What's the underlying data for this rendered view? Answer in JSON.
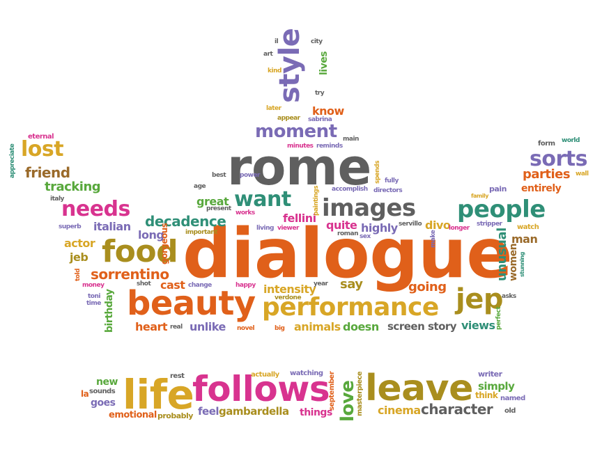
{
  "palette": {
    "orange": "#e0601a",
    "purple": "#7a6bb5",
    "magenta": "#d8338f",
    "green": "#58a83c",
    "olive": "#a98e1e",
    "gold": "#d8a626",
    "teal": "#2f8f77",
    "gray": "#5f5f5f",
    "pink": "#e0509a",
    "lightgray": "#8a8a8a",
    "brown": "#9a6a2a",
    "blue": "#3f78b5"
  },
  "words": [
    {
      "text": "dialogue",
      "color": "orange"
    },
    {
      "text": "rome",
      "color": "gray"
    },
    {
      "text": "beauty",
      "color": "orange"
    },
    {
      "text": "performance",
      "color": "gold"
    },
    {
      "text": "food",
      "color": "olive"
    },
    {
      "text": "images",
      "color": "gray"
    },
    {
      "text": "people",
      "color": "teal"
    },
    {
      "text": "style",
      "color": "purple"
    },
    {
      "text": "moment",
      "color": "purple"
    },
    {
      "text": "want",
      "color": "teal"
    },
    {
      "text": "needs",
      "color": "magenta"
    },
    {
      "text": "lost",
      "color": "gold"
    },
    {
      "text": "sorts",
      "color": "purple"
    },
    {
      "text": "jep",
      "color": "olive"
    },
    {
      "text": "decadence",
      "color": "teal"
    },
    {
      "text": "sorrentino",
      "color": "orange"
    },
    {
      "text": "friend",
      "color": "brown"
    },
    {
      "text": "tracking",
      "color": "green"
    },
    {
      "text": "parties",
      "color": "orange"
    },
    {
      "text": "unusual",
      "color": "teal"
    },
    {
      "text": "going",
      "color": "orange"
    },
    {
      "text": "intensity",
      "color": "gold"
    },
    {
      "text": "quite",
      "color": "magenta"
    },
    {
      "text": "highly",
      "color": "purple"
    },
    {
      "text": "fellini",
      "color": "magenta"
    },
    {
      "text": "great",
      "color": "green"
    },
    {
      "text": "italian",
      "color": "purple"
    },
    {
      "text": "long",
      "color": "purple"
    },
    {
      "text": "actor",
      "color": "gold"
    },
    {
      "text": "jeb",
      "color": "olive"
    },
    {
      "text": "cast",
      "color": "orange"
    },
    {
      "text": "birthday",
      "color": "green"
    },
    {
      "text": "heart",
      "color": "orange"
    },
    {
      "text": "unlike",
      "color": "purple"
    },
    {
      "text": "animals",
      "color": "gold"
    },
    {
      "text": "doesn",
      "color": "green"
    },
    {
      "text": "screen",
      "color": "gray"
    },
    {
      "text": "story",
      "color": "gray"
    },
    {
      "text": "views",
      "color": "teal"
    },
    {
      "text": "say",
      "color": "olive"
    },
    {
      "text": "divo",
      "color": "gold"
    },
    {
      "text": "man",
      "color": "brown"
    },
    {
      "text": "women",
      "color": "brown"
    },
    {
      "text": "know",
      "color": "orange"
    },
    {
      "text": "lives",
      "color": "green"
    },
    {
      "text": "entirely",
      "color": "orange"
    },
    {
      "text": "gorgeous",
      "color": "orange"
    },
    {
      "text": "life",
      "color": "gold"
    },
    {
      "text": "follows",
      "color": "magenta"
    },
    {
      "text": "leave",
      "color": "olive"
    },
    {
      "text": "love",
      "color": "green"
    },
    {
      "text": "character",
      "color": "gray"
    },
    {
      "text": "cinema",
      "color": "gold"
    },
    {
      "text": "gambardella",
      "color": "olive"
    },
    {
      "text": "things",
      "color": "magenta"
    },
    {
      "text": "feel",
      "color": "purple"
    },
    {
      "text": "emotional",
      "color": "orange"
    },
    {
      "text": "probably",
      "color": "olive"
    },
    {
      "text": "goes",
      "color": "purple"
    },
    {
      "text": "new",
      "color": "green"
    },
    {
      "text": "simply",
      "color": "green"
    },
    {
      "text": "think",
      "color": "gold"
    },
    {
      "text": "writer",
      "color": "purple"
    },
    {
      "text": "named",
      "color": "purple"
    },
    {
      "text": "masterpiece",
      "color": "olive"
    },
    {
      "text": "september",
      "color": "orange"
    },
    {
      "text": "watching",
      "color": "purple"
    },
    {
      "text": "actually",
      "color": "gold"
    },
    {
      "text": "rest",
      "color": "gray"
    },
    {
      "text": "sounds",
      "color": "gray"
    },
    {
      "text": "la",
      "color": "orange"
    },
    {
      "text": "old",
      "color": "gray"
    },
    {
      "text": "eternal",
      "color": "magenta"
    },
    {
      "text": "appreciate",
      "color": "teal"
    },
    {
      "text": "italy",
      "color": "gray"
    },
    {
      "text": "superb",
      "color": "purple"
    },
    {
      "text": "told",
      "color": "orange"
    },
    {
      "text": "money",
      "color": "magenta"
    },
    {
      "text": "toni",
      "color": "purple"
    },
    {
      "text": "time",
      "color": "purple"
    },
    {
      "text": "shot",
      "color": "gray"
    },
    {
      "text": "change",
      "color": "purple"
    },
    {
      "text": "happy",
      "color": "magenta"
    },
    {
      "text": "year",
      "color": "gray"
    },
    {
      "text": "verdone",
      "color": "olive"
    },
    {
      "text": "real",
      "color": "gray"
    },
    {
      "text": "novel",
      "color": "orange"
    },
    {
      "text": "big",
      "color": "orange"
    },
    {
      "text": "important",
      "color": "olive"
    },
    {
      "text": "works",
      "color": "magenta"
    },
    {
      "text": "living",
      "color": "purple"
    },
    {
      "text": "viewer",
      "color": "magenta"
    },
    {
      "text": "roman",
      "color": "gray"
    },
    {
      "text": "sex",
      "color": "purple"
    },
    {
      "text": "present",
      "color": "gray"
    },
    {
      "text": "age",
      "color": "gray"
    },
    {
      "text": "best",
      "color": "gray"
    },
    {
      "text": "power",
      "color": "purple"
    },
    {
      "text": "paintings",
      "color": "gold"
    },
    {
      "text": "accomplish",
      "color": "purple"
    },
    {
      "text": "directors",
      "color": "purple"
    },
    {
      "text": "spends",
      "color": "gold"
    },
    {
      "text": "fully",
      "color": "purple"
    },
    {
      "text": "servillo",
      "color": "gray"
    },
    {
      "text": "make",
      "color": "purple"
    },
    {
      "text": "longer",
      "color": "magenta"
    },
    {
      "text": "stripper",
      "color": "purple"
    },
    {
      "text": "pain",
      "color": "purple"
    },
    {
      "text": "family",
      "color": "gold"
    },
    {
      "text": "watch",
      "color": "gold"
    },
    {
      "text": "stunning",
      "color": "teal"
    },
    {
      "text": "asks",
      "color": "gray"
    },
    {
      "text": "perfect",
      "color": "green"
    },
    {
      "text": "form",
      "color": "gray"
    },
    {
      "text": "world",
      "color": "teal"
    },
    {
      "text": "wall",
      "color": "gold"
    },
    {
      "text": "minutes",
      "color": "magenta"
    },
    {
      "text": "reminds",
      "color": "purple"
    },
    {
      "text": "main",
      "color": "gray"
    },
    {
      "text": "sabrina",
      "color": "purple"
    },
    {
      "text": "appear",
      "color": "olive"
    },
    {
      "text": "later",
      "color": "gold"
    },
    {
      "text": "try",
      "color": "gray"
    },
    {
      "text": "kind",
      "color": "gold"
    },
    {
      "text": "art",
      "color": "gray"
    },
    {
      "text": "il",
      "color": "gray"
    },
    {
      "text": "city",
      "color": "gray"
    }
  ]
}
